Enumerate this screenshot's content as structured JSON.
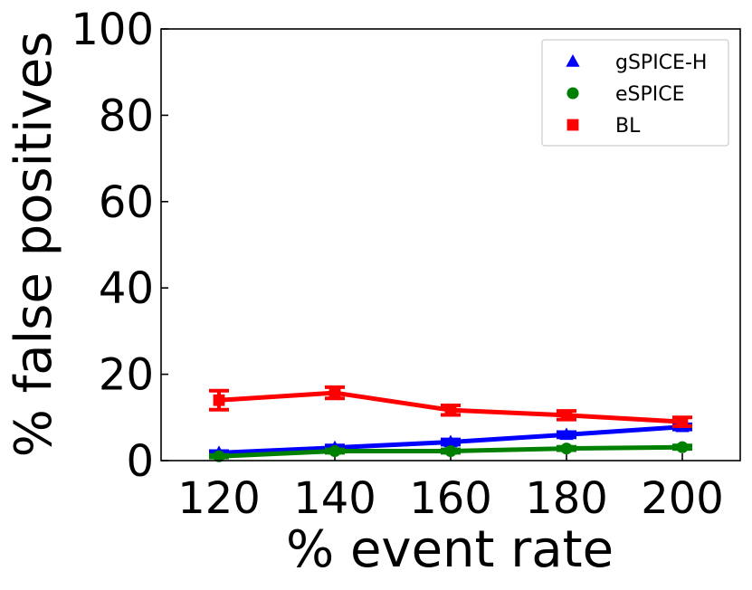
{
  "chart_data": {
    "type": "line",
    "xlabel": "% event rate",
    "ylabel": "% false positives",
    "x": [
      120,
      140,
      160,
      180,
      200
    ],
    "xlim": [
      110,
      210
    ],
    "ylim": [
      0,
      100
    ],
    "xticks": [
      "120",
      "140",
      "160",
      "180",
      "200"
    ],
    "yticks": [
      "0",
      "20",
      "40",
      "60",
      "80",
      "100"
    ],
    "grid": false,
    "legend_position": "top-right",
    "series": [
      {
        "name": "gSPICE-H",
        "marker": "triangle",
        "color": "#0000ff",
        "values": [
          1.8,
          3.0,
          4.3,
          6.0,
          7.8
        ],
        "errors": [
          0.4,
          0.5,
          0.6,
          0.6,
          0.6
        ]
      },
      {
        "name": "eSPICE",
        "marker": "circle",
        "color": "#008000",
        "values": [
          1.0,
          2.2,
          2.2,
          2.8,
          3.1
        ],
        "errors": [
          0.3,
          0.4,
          0.4,
          0.4,
          0.4
        ]
      },
      {
        "name": "BL",
        "marker": "square",
        "color": "#ff0000",
        "values": [
          14.0,
          15.7,
          11.7,
          10.5,
          9.0
        ],
        "errors": [
          2.2,
          1.3,
          1.1,
          1.0,
          1.0
        ]
      }
    ]
  }
}
